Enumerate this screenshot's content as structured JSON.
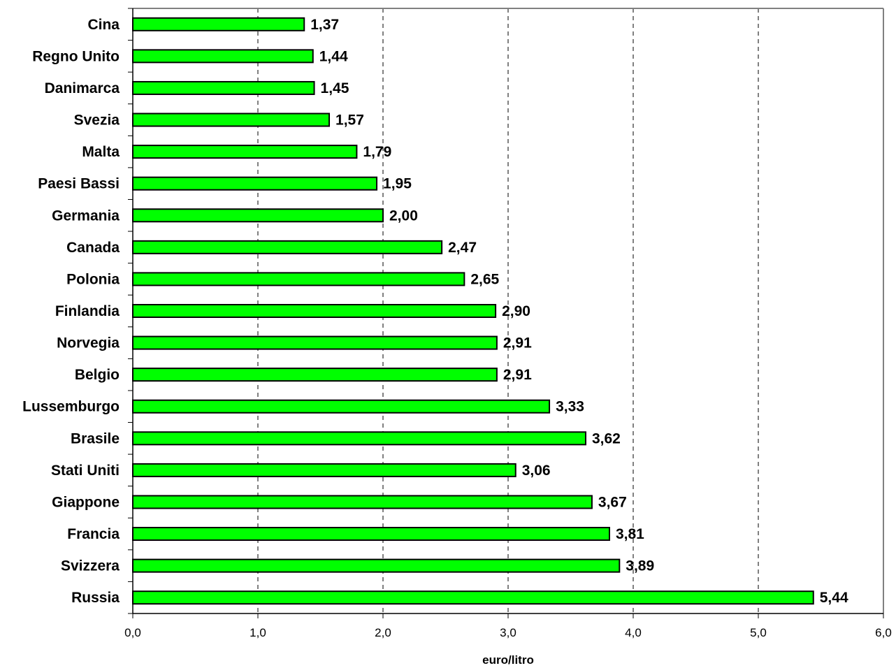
{
  "chart_data": {
    "type": "bar",
    "orientation": "horizontal",
    "categories": [
      "Cina",
      "Regno Unito",
      "Danimarca",
      "Svezia",
      "Malta",
      "Paesi Bassi",
      "Germania",
      "Canada",
      "Polonia",
      "Finlandia",
      "Norvegia",
      "Belgio",
      "Lussemburgo",
      "Brasile",
      "Stati Uniti",
      "Giappone",
      "Francia",
      "Svizzera",
      "Russia"
    ],
    "values": [
      1.37,
      1.44,
      1.45,
      1.57,
      1.79,
      1.95,
      2.0,
      2.47,
      2.65,
      2.9,
      2.91,
      2.91,
      3.33,
      3.62,
      3.06,
      3.67,
      3.81,
      3.89,
      5.44
    ],
    "value_labels": [
      "1,37",
      "1,44",
      "1,45",
      "1,57",
      "1,79",
      "1,95",
      "2,00",
      "2,47",
      "2,65",
      "2,90",
      "2,91",
      "2,91",
      "3,33",
      "3,62",
      "3,06",
      "3,67",
      "3,81",
      "3,89",
      "5,44"
    ],
    "title": "",
    "xlabel": "euro/litro",
    "ylabel": "",
    "xlim": [
      0,
      6
    ],
    "x_ticks": [
      0,
      1,
      2,
      3,
      4,
      5,
      6
    ],
    "x_tick_labels": [
      "0,0",
      "1,0",
      "2,0",
      "3,0",
      "4,0",
      "5,0",
      "6,0"
    ],
    "grid": "vertical dashed",
    "legend": "none",
    "colors": {
      "bar_fill": "#00ff00",
      "bar_stroke": "#000000",
      "grid": "#000000",
      "frame": "#808080",
      "axis": "#000000"
    }
  }
}
